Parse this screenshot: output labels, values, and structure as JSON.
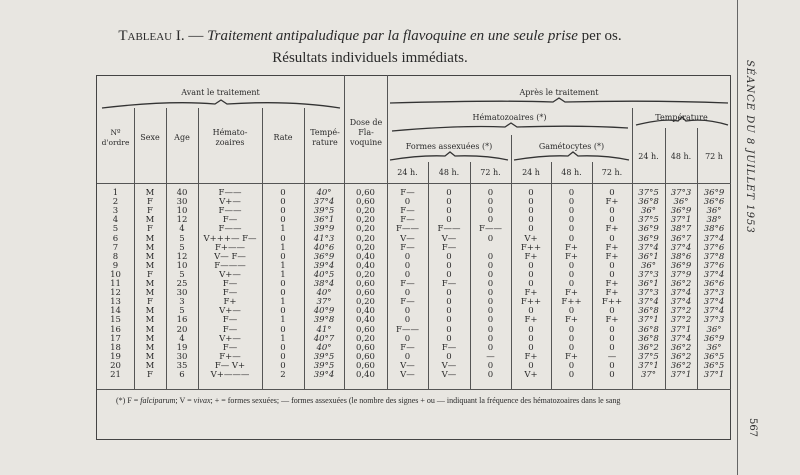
{
  "title": {
    "lead": "Tableau I. —",
    "italic": "Traitement antipaludique par la flavoquine en une seule prise",
    "tail": "per os.",
    "subtitle": "Résultats individuels immédiats."
  },
  "side_header": "SÉANCE DU 8 JUILLET 1953",
  "page_number": "567",
  "headers": {
    "avant": "Avant le traitement",
    "apres": "Après le traitement",
    "no": "Nº d'ordre",
    "sexe": "Sexe",
    "age": "Age",
    "hemato": "Hémato-zoaires",
    "rate": "Rate",
    "temp": "Tempé-rature",
    "dose": "Dose de Fla-voquine",
    "hematozoaires": "Hématozoaires (*)",
    "assexuees": "Formes assexuées (*)",
    "gametocytes": "Gamétocytes (*)",
    "temperature": "Température",
    "assex_24": "24 h.",
    "assex_48": "48 h.",
    "assex_72": "72 h.",
    "gam_24": "24 h",
    "gam_48": "48 h.",
    "gam_72": "72 h.",
    "temp_24": "24 h.",
    "temp_48": "48 h.",
    "temp_72": "72 h"
  },
  "rows": [
    [
      "1",
      "M",
      "40",
      "F——",
      "0",
      "40°",
      "0,60",
      "F—",
      "0",
      "0",
      "0",
      "0",
      "0",
      "37°5",
      "37°3",
      "36°9"
    ],
    [
      "2",
      "F",
      "30",
      "V+—",
      "0",
      "37°4",
      "0,60",
      "0",
      "0",
      "0",
      "0",
      "0",
      "F+",
      "36°8",
      "36°",
      "36°6"
    ],
    [
      "3",
      "F",
      "10",
      "F——",
      "0",
      "39°5",
      "0,20",
      "F—",
      "0",
      "0",
      "0",
      "0",
      "0",
      "36°",
      "36°9",
      "36°"
    ],
    [
      "4",
      "M",
      "12",
      "F—",
      "0",
      "36°1",
      "0,20",
      "F—",
      "0",
      "0",
      "0",
      "0",
      "0",
      "37°5",
      "37°1",
      "38°"
    ],
    [
      "5",
      "F",
      "4",
      "F——",
      "1",
      "39°9",
      "0,20",
      "F——",
      "F——",
      "F——",
      "0",
      "0",
      "F+",
      "36°9",
      "38°7",
      "38°6"
    ],
    [
      "6",
      "M",
      "5",
      "V+++— F—",
      "0",
      "41°3",
      "0,20",
      "V—",
      "V—",
      "0",
      "V+",
      "0",
      "0",
      "36°9",
      "36°7",
      "37°4"
    ],
    [
      "7",
      "M",
      "5",
      "F+——",
      "1",
      "40°6",
      "0,20",
      "F—",
      "F—",
      "",
      "F++",
      "F+",
      "F+",
      "37°4",
      "37°4",
      "37°6"
    ],
    [
      "8",
      "M",
      "12",
      "V— F—",
      "0",
      "36°9",
      "0,40",
      "0",
      "0",
      "0",
      "F+",
      "F+",
      "F+",
      "36°1",
      "38°6",
      "37°8"
    ],
    [
      "9",
      "M",
      "10",
      "F———",
      "1",
      "39°4",
      "0,40",
      "0",
      "0",
      "0",
      "0",
      "0",
      "0",
      "36°",
      "36°9",
      "37°6"
    ],
    [
      "10",
      "F",
      "5",
      "V+—",
      "1",
      "40°5",
      "0,20",
      "0",
      "0",
      "0",
      "0",
      "0",
      "0",
      "37°3",
      "37°9",
      "37°4"
    ],
    [
      "11",
      "M",
      "25",
      "F—",
      "0",
      "38°4",
      "0,60",
      "F—",
      "F—",
      "0",
      "0",
      "0",
      "F+",
      "36°1",
      "36°2",
      "36°6"
    ],
    [
      "12",
      "M",
      "30",
      "F—",
      "0",
      "40°",
      "0,60",
      "0",
      "0",
      "0",
      "F+",
      "F+",
      "F+",
      "37°3",
      "37°4",
      "37°3"
    ],
    [
      "13",
      "F",
      "3",
      "F+",
      "1",
      "37°",
      "0,20",
      "F—",
      "0",
      "0",
      "F++",
      "F++",
      "F++",
      "37°4",
      "37°4",
      "37°4"
    ],
    [
      "14",
      "M",
      "5",
      "V+—",
      "0",
      "40°9",
      "0,40",
      "0",
      "0",
      "0",
      "0",
      "0",
      "0",
      "36°8",
      "37°2",
      "37°4"
    ],
    [
      "15",
      "M",
      "16",
      "F—",
      "1",
      "39°8",
      "0,40",
      "0",
      "0",
      "0",
      "F+",
      "F+",
      "F+",
      "37°1",
      "37°2",
      "37°3"
    ],
    [
      "16",
      "M",
      "20",
      "F—",
      "0",
      "41°",
      "0,60",
      "F——",
      "0",
      "0",
      "0",
      "0",
      "0",
      "36°8",
      "37°1",
      "36°"
    ],
    [
      "17",
      "M",
      "4",
      "V+—",
      "1",
      "40°7",
      "0,20",
      "0",
      "0",
      "0",
      "0",
      "0",
      "0",
      "36°8",
      "37°4",
      "36°9"
    ],
    [
      "18",
      "M",
      "19",
      "F—",
      "0",
      "40°",
      "0,60",
      "F—",
      "F—",
      "0",
      "0",
      "0",
      "0",
      "36°2",
      "36°2",
      "36°"
    ],
    [
      "19",
      "M",
      "30",
      "F+—",
      "0",
      "39°5",
      "0,60",
      "0",
      "0",
      "—",
      "F+",
      "F+",
      "—",
      "37°5",
      "36°2",
      "36°5"
    ],
    [
      "20",
      "M",
      "35",
      "F— V+",
      "0",
      "39°5",
      "0,60",
      "V—",
      "V—",
      "0",
      "0",
      "0",
      "0",
      "37°1",
      "36°2",
      "36°5"
    ],
    [
      "21",
      "F",
      "6",
      "V+———",
      "2",
      "39°4",
      "0,40",
      "V—",
      "V—",
      "0",
      "V+",
      "0",
      "0",
      "37°",
      "37°1",
      "37°1"
    ]
  ],
  "footnote": {
    "star": "(*) F =",
    "falciparum": "falciparum",
    "mid": "; V =",
    "vivax": "vivax",
    "rest": "; + = formes sexuées; — formes assexuées (le nombre des signes + ou — indiquant la fréquence des hématozoaires dans le sang"
  }
}
